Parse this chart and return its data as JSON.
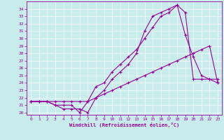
{
  "xlabel": "Windchill (Refroidissement éolien,°C)",
  "background_color": "#c8ecec",
  "line_color": "#990099",
  "xlim": [
    -0.5,
    23.5
  ],
  "ylim": [
    19.7,
    35.0
  ],
  "x_ticks": [
    0,
    1,
    2,
    3,
    4,
    5,
    6,
    7,
    8,
    9,
    10,
    11,
    12,
    13,
    14,
    15,
    16,
    17,
    18,
    19,
    20,
    21,
    22,
    23
  ],
  "y_ticks": [
    20,
    21,
    22,
    23,
    24,
    25,
    26,
    27,
    28,
    29,
    30,
    31,
    32,
    33,
    34
  ],
  "line1_x": [
    0,
    1,
    2,
    3,
    4,
    5,
    6,
    7,
    8,
    9,
    10,
    11,
    12,
    13,
    14,
    15,
    16,
    17,
    18,
    19,
    20,
    21,
    22,
    23
  ],
  "line1_y": [
    21.5,
    21.5,
    21.5,
    21.0,
    21.0,
    21.0,
    20.0,
    21.5,
    23.5,
    24.0,
    25.5,
    26.5,
    27.5,
    28.5,
    30.0,
    31.5,
    33.0,
    33.5,
    34.5,
    30.5,
    27.5,
    25.0,
    24.5,
    24.0
  ],
  "line2_x": [
    0,
    1,
    2,
    3,
    4,
    5,
    6,
    7,
    8,
    9,
    10,
    11,
    12,
    13,
    14,
    15,
    16,
    17,
    18,
    19,
    20,
    21,
    22,
    23
  ],
  "line2_y": [
    21.5,
    21.5,
    21.5,
    21.0,
    20.5,
    20.5,
    20.5,
    20.0,
    22.0,
    23.0,
    24.5,
    25.5,
    26.5,
    28.0,
    31.0,
    33.0,
    33.5,
    34.0,
    34.5,
    33.5,
    24.5,
    24.5,
    24.5,
    24.5
  ],
  "line3_x": [
    0,
    1,
    2,
    3,
    4,
    5,
    6,
    7,
    8,
    9,
    10,
    11,
    12,
    13,
    14,
    15,
    16,
    17,
    18,
    19,
    20,
    21,
    22,
    23
  ],
  "line3_y": [
    21.5,
    21.5,
    21.5,
    21.5,
    21.5,
    21.5,
    21.5,
    21.5,
    22.0,
    22.5,
    23.0,
    23.5,
    24.0,
    24.5,
    25.0,
    25.5,
    26.0,
    26.5,
    27.0,
    27.5,
    28.0,
    28.5,
    29.0,
    24.0
  ]
}
